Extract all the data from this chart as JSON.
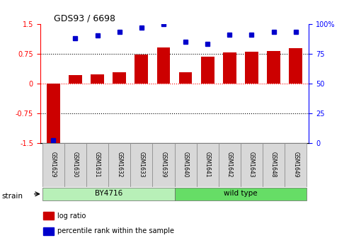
{
  "title": "GDS93 / 6698",
  "samples": [
    "GSM1629",
    "GSM1630",
    "GSM1631",
    "GSM1632",
    "GSM1633",
    "GSM1639",
    "GSM1640",
    "GSM1641",
    "GSM1642",
    "GSM1643",
    "GSM1648",
    "GSM1649"
  ],
  "log_ratio": [
    -1.5,
    0.2,
    0.22,
    0.28,
    0.72,
    0.9,
    0.28,
    0.68,
    0.77,
    0.8,
    0.82,
    0.88
  ],
  "percentile": [
    2,
    88,
    90,
    93,
    97,
    100,
    85,
    83,
    91,
    91,
    93,
    93
  ],
  "groups": [
    {
      "label": "BY4716",
      "start": 0,
      "end": 5,
      "color": "#b8f0b8"
    },
    {
      "label": "wild type",
      "start": 6,
      "end": 11,
      "color": "#66dd66"
    }
  ],
  "bar_color": "#cc0000",
  "dot_color": "#0000cc",
  "ylim_left": [
    -1.5,
    1.5
  ],
  "ylim_right": [
    0,
    100
  ],
  "yticks_left": [
    -1.5,
    -0.75,
    0,
    0.75,
    1.5
  ],
  "yticks_right": [
    0,
    25,
    50,
    75,
    100
  ],
  "ytick_labels_left": [
    "-1.5",
    "-0.75",
    "0",
    "0.75",
    "1.5"
  ],
  "ytick_labels_right": [
    "0",
    "25",
    "50",
    "75",
    "100%"
  ],
  "hlines": [
    -0.75,
    0,
    0.75
  ],
  "strain_label": "strain",
  "legend_items": [
    {
      "label": "log ratio",
      "color": "#cc0000"
    },
    {
      "label": "percentile rank within the sample",
      "color": "#0000cc"
    }
  ]
}
